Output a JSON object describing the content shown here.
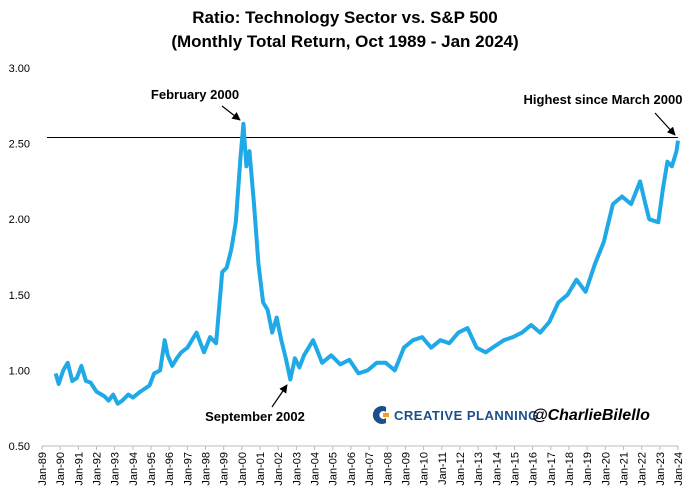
{
  "chart_data": {
    "type": "line",
    "title": "Ratio: Technology Sector vs. S&P 500",
    "subtitle": "(Monthly Total Return, Oct 1989 - Jan 2024)",
    "x": [
      "Oct-89",
      "Dec-89",
      "Mar-90",
      "Jun-90",
      "Sep-90",
      "Dec-90",
      "Mar-91",
      "Jun-91",
      "Sep-91",
      "Jan-92",
      "Jun-92",
      "Sep-92",
      "Dec-92",
      "Mar-93",
      "Jun-93",
      "Oct-93",
      "Jan-94",
      "Jun-94",
      "Dec-94",
      "Mar-95",
      "Jul-95",
      "Oct-95",
      "Dec-95",
      "Mar-96",
      "Jun-96",
      "Sep-96",
      "Jan-97",
      "Jul-97",
      "Dec-97",
      "Apr-98",
      "Aug-98",
      "Dec-98",
      "Mar-99",
      "Jun-99",
      "Sep-99",
      "Dec-99",
      "Feb-00",
      "Apr-00",
      "Jun-00",
      "Sep-00",
      "Dec-00",
      "Mar-01",
      "Jun-01",
      "Sep-01",
      "Dec-01",
      "Mar-02",
      "Jun-02",
      "Sep-02",
      "Dec-02",
      "Mar-03",
      "Jun-03",
      "Dec-03",
      "Jun-04",
      "Dec-04",
      "Jun-05",
      "Dec-05",
      "Jun-06",
      "Dec-06",
      "Jun-07",
      "Dec-07",
      "Jun-08",
      "Dec-08",
      "Jun-09",
      "Dec-09",
      "Jun-10",
      "Dec-10",
      "Jun-11",
      "Dec-11",
      "Jun-12",
      "Dec-12",
      "Jun-13",
      "Dec-13",
      "Jun-14",
      "Dec-14",
      "Jun-15",
      "Dec-15",
      "Jun-16",
      "Dec-16",
      "Jun-17",
      "Dec-17",
      "Jun-18",
      "Dec-18",
      "Jun-19",
      "Dec-19",
      "Jun-20",
      "Dec-20",
      "Jun-21",
      "Dec-21",
      "Mar-22",
      "Jun-22",
      "Dec-22",
      "Mar-23",
      "Jun-23",
      "Sep-23",
      "Dec-23",
      "Jan-24"
    ],
    "series": [
      {
        "color": "#1fa9e6",
        "values": [
          0.98,
          0.91,
          1.0,
          1.05,
          0.93,
          0.95,
          1.03,
          0.93,
          0.92,
          0.86,
          0.83,
          0.8,
          0.84,
          0.78,
          0.8,
          0.84,
          0.82,
          0.86,
          0.9,
          0.98,
          1.0,
          1.2,
          1.1,
          1.03,
          1.08,
          1.12,
          1.15,
          1.25,
          1.12,
          1.22,
          1.18,
          1.65,
          1.68,
          1.8,
          1.98,
          2.4,
          2.63,
          2.35,
          2.45,
          2.1,
          1.7,
          1.45,
          1.4,
          1.25,
          1.35,
          1.2,
          1.08,
          0.94,
          1.08,
          1.02,
          1.1,
          1.2,
          1.05,
          1.1,
          1.04,
          1.07,
          0.98,
          1.0,
          1.05,
          1.05,
          1.0,
          1.15,
          1.2,
          1.22,
          1.15,
          1.2,
          1.18,
          1.25,
          1.28,
          1.15,
          1.12,
          1.16,
          1.2,
          1.22,
          1.25,
          1.3,
          1.25,
          1.32,
          1.45,
          1.5,
          1.6,
          1.52,
          1.7,
          1.85,
          2.1,
          2.15,
          2.1,
          2.25,
          2.12,
          2.0,
          1.98,
          2.2,
          2.38,
          2.35,
          2.45,
          2.52
        ]
      }
    ],
    "ylim": [
      0.5,
      3.0
    ],
    "yticks": [
      {
        "value": 0.5,
        "label": "0.50"
      },
      {
        "value": 1.0,
        "label": "1.00"
      },
      {
        "value": 1.5,
        "label": "1.50"
      },
      {
        "value": 2.0,
        "label": "2.00"
      },
      {
        "value": 2.5,
        "label": "2.50"
      },
      {
        "value": 3.0,
        "label": "3.00"
      }
    ],
    "xlim": [
      "Jan-89",
      "Jan-24"
    ],
    "xticks": [
      "Jan-89",
      "Jan-90",
      "Jan-91",
      "Jan-92",
      "Jan-93",
      "Jan-94",
      "Jan-95",
      "Jan-96",
      "Jan-97",
      "Jan-98",
      "Jan-99",
      "Jan-00",
      "Jan-01",
      "Jan-02",
      "Jan-03",
      "Jan-04",
      "Jan-05",
      "Jan-06",
      "Jan-07",
      "Jan-08",
      "Jan-09",
      "Jan-10",
      "Jan-11",
      "Jan-12",
      "Jan-13",
      "Jan-14",
      "Jan-15",
      "Jan-16",
      "Jan-17",
      "Jan-18",
      "Jan-19",
      "Jan-20",
      "Jan-21",
      "Jan-22",
      "Jan-23",
      "Jan-24"
    ],
    "reference_line": 2.54,
    "annotations": [
      "February 2000",
      "September 2002",
      "Highest since March 2000"
    ],
    "logo": "CREATIVE PLANNING",
    "handle": "@CharlieBilello"
  }
}
